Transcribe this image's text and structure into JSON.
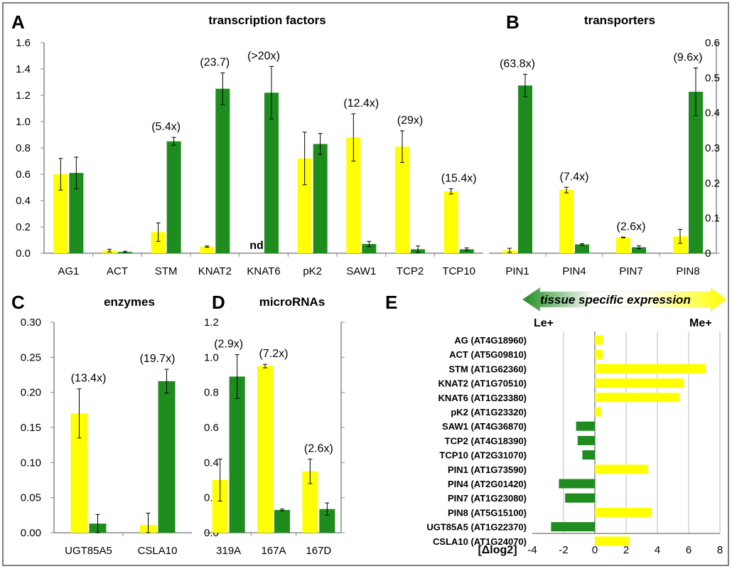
{
  "colors": {
    "me": "#ffff00",
    "le": "#1e8c1e",
    "axis": "#888888",
    "grid": "#bbbbbb",
    "frame": "#555555"
  },
  "chart_data": [
    {
      "letter": "A",
      "title": "transcription factors",
      "type": "bar",
      "categories": [
        "AG1",
        "ACT",
        "STM",
        "KNAT2",
        "KNAT6",
        "pK2",
        "SAW1",
        "TCP2",
        "TCP10"
      ],
      "ylim": [
        0,
        1.6
      ],
      "yticks": [
        "0.0",
        "0.2",
        "0.4",
        "0.6",
        "0.8",
        "1.0",
        "1.2",
        "1.4",
        "1.6"
      ],
      "series": [
        {
          "color": "me",
          "values": [
            0.6,
            0.02,
            0.16,
            0.05,
            0,
            0.72,
            0.88,
            0.81,
            0.47
          ],
          "errors": [
            0.12,
            0.01,
            0.07,
            0.005,
            0,
            0.2,
            0.18,
            0.12,
            0.02
          ]
        },
        {
          "color": "le",
          "values": [
            0.61,
            0.01,
            0.85,
            1.25,
            1.22,
            0.83,
            0.07,
            0.03,
            0.03
          ],
          "errors": [
            0.12,
            0.005,
            0.03,
            0.12,
            0.2,
            0.08,
            0.02,
            0.025,
            0.01
          ]
        }
      ],
      "annotations": [
        "",
        "",
        "(5.4x)",
        "(23.7)",
        "(>20x)",
        "",
        "(12.4x)",
        "(29x)",
        "(15.4x)"
      ],
      "nd_label": "nd",
      "nd_index": 4
    },
    {
      "letter": "B",
      "title": "transporters",
      "type": "bar",
      "categories": [
        "PIN1",
        "PIN4",
        "PIN7",
        "PIN8"
      ],
      "ylim": [
        0,
        0.6
      ],
      "yticks": [
        "0",
        "0.1",
        "0.2",
        "0.3",
        "0.4",
        "0.5",
        "0.6"
      ],
      "series": [
        {
          "color": "me",
          "values": [
            0.008,
            0.18,
            0.045,
            0.048
          ],
          "errors": [
            0.006,
            0.008,
            0.001,
            0.02
          ]
        },
        {
          "color": "le",
          "values": [
            0.478,
            0.025,
            0.017,
            0.46
          ],
          "errors": [
            0.032,
            0.002,
            0.004,
            0.068
          ]
        }
      ],
      "annotations": [
        "(63.8x)",
        "(7.4x)",
        "(2.6x)",
        "(9.6x)"
      ]
    },
    {
      "letter": "C",
      "title": "enzymes",
      "type": "bar",
      "categories": [
        "UGT85A5",
        "CSLA10"
      ],
      "ylim": [
        0,
        0.3
      ],
      "yticks": [
        "0.00",
        "0.05",
        "0.10",
        "0.15",
        "0.20",
        "0.25",
        "0.30"
      ],
      "series": [
        {
          "color": "me",
          "values": [
            0.17,
            0.011
          ],
          "errors": [
            0.035,
            0.017
          ]
        },
        {
          "color": "le",
          "values": [
            0.013,
            0.216
          ],
          "errors": [
            0.013,
            0.017
          ]
        }
      ],
      "annotations": [
        "(13.4x)",
        "(19.7x)"
      ]
    },
    {
      "letter": "D",
      "title": "microRNAs",
      "type": "bar",
      "categories": [
        "319A",
        "167A",
        "167D"
      ],
      "ylim": [
        0,
        1.2
      ],
      "yticks": [
        "0.0",
        "0.2",
        "0.4",
        "0.6",
        "0.8",
        "1.0",
        "1.2"
      ],
      "series": [
        {
          "color": "me",
          "values": [
            0.3,
            0.95,
            0.35
          ],
          "errors": [
            0.12,
            0.01,
            0.07
          ]
        },
        {
          "color": "le",
          "values": [
            0.89,
            0.13,
            0.135
          ],
          "errors": [
            0.125,
            0.005,
            0.035
          ]
        }
      ],
      "annotations": [
        "(2.9x)",
        "(7.2x)",
        "(2.6x)"
      ]
    },
    {
      "letter": "E",
      "type": "bar-horizontal",
      "header": "tissue specific expression",
      "left_label": "Le+",
      "right_label": "Me+",
      "xlabel": "[Δlog2]",
      "xlim": [
        -4,
        8
      ],
      "xticks": [
        "-4",
        "-2",
        "0",
        "2",
        "4",
        "6",
        "8"
      ],
      "categories": [
        "AG (AT4G18960)",
        "ACT (AT5G09810)",
        "STM (AT1G62360)",
        "KNAT2 (AT1G70510)",
        "KNAT6 (AT1G23380)",
        "pK2 (AT1G23320)",
        "SAW1 (AT4G36870)",
        "TCP2 (AT4G18390)",
        "TCP10 (AT2G31070)",
        "PIN1 (AT1G73590)",
        "PIN4 (AT2G01420)",
        "PIN7 (AT1G23080)",
        "PIN8 (AT5G15100)",
        "UGT85A5 (AT1G22370)",
        "CSLA10 (AT1G24070)"
      ],
      "values": [
        0.5,
        0.5,
        7.1,
        5.7,
        5.4,
        0.4,
        -1.2,
        -1.1,
        -0.8,
        3.4,
        -2.3,
        -1.9,
        3.6,
        -2.8,
        2.2
      ]
    }
  ]
}
